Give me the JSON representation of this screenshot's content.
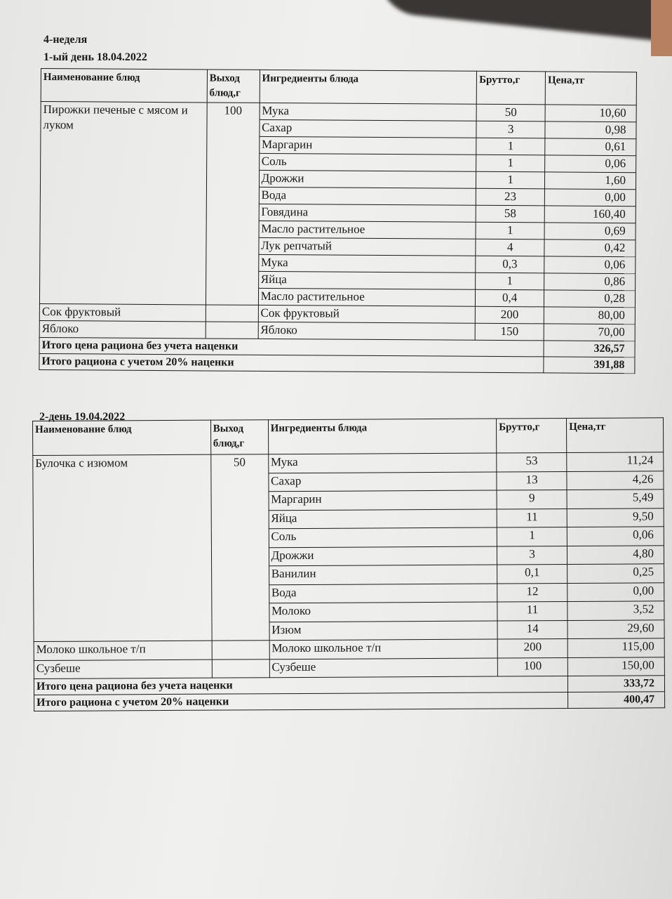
{
  "week": "4-неделя",
  "headers": [
    "Наименование блюд",
    "Выход блюд,г",
    "Ингредиенты блюда",
    "Брутто,г",
    "Цена,тг"
  ],
  "days": [
    {
      "title": "1-ый день 18.04.2022",
      "dishes": [
        {
          "name": "Пирожки печеные с мясом и луком",
          "yield": "100",
          "ingredients": [
            {
              "name": "Мука",
              "brutto": "50",
              "price": "10,60"
            },
            {
              "name": "Сахар",
              "brutto": "3",
              "price": "0,98"
            },
            {
              "name": "Маргарин",
              "brutto": "1",
              "price": "0,61"
            },
            {
              "name": "Соль",
              "brutto": "1",
              "price": "0,06"
            },
            {
              "name": "Дрожжи",
              "brutto": "1",
              "price": "1,60"
            },
            {
              "name": "Вода",
              "brutto": "23",
              "price": "0,00"
            },
            {
              "name": "Говядина",
              "brutto": "58",
              "price": "160,40"
            },
            {
              "name": "Масло растительное",
              "brutto": "1",
              "price": "0,69"
            },
            {
              "name": "Лук репчатый",
              "brutto": "4",
              "price": "0,42"
            },
            {
              "name": "Мука",
              "brutto": "0,3",
              "price": "0,06"
            },
            {
              "name": "Яйца",
              "brutto": "1",
              "price": "0,86"
            },
            {
              "name": "Масло растительное",
              "brutto": "0,4",
              "price": "0,28"
            }
          ]
        },
        {
          "name": "Сок фруктовый",
          "yield": "",
          "ingredients": [
            {
              "name": "Сок фруктовый",
              "brutto": "200",
              "price": "80,00"
            }
          ]
        },
        {
          "name": "Яблоко",
          "yield": "",
          "ingredients": [
            {
              "name": "Яблоко",
              "brutto": "150",
              "price": "70,00"
            }
          ]
        }
      ],
      "totals": [
        {
          "label": "Итого цена рациона без учета наценки",
          "value": "326,57"
        },
        {
          "label": "Итого рациона с учетом 20% наценки",
          "value": "391,88"
        }
      ]
    },
    {
      "title": "2-день 19.04.2022",
      "dishes": [
        {
          "name": "Булочка с изюмом",
          "yield": "50",
          "ingredients": [
            {
              "name": "Мука",
              "brutto": "53",
              "price": "11,24"
            },
            {
              "name": "Сахар",
              "brutto": "13",
              "price": "4,26"
            },
            {
              "name": "Маргарин",
              "brutto": "9",
              "price": "5,49"
            },
            {
              "name": "Яйца",
              "brutto": "11",
              "price": "9,50"
            },
            {
              "name": "Соль",
              "brutto": "1",
              "price": "0,06"
            },
            {
              "name": "Дрожжи",
              "brutto": "3",
              "price": "4,80"
            },
            {
              "name": "Ванилин",
              "brutto": "0,1",
              "price": "0,25"
            },
            {
              "name": "Вода",
              "brutto": "12",
              "price": "0,00"
            },
            {
              "name": "Молоко",
              "brutto": "11",
              "price": "3,52"
            },
            {
              "name": "Изюм",
              "brutto": "14",
              "price": "29,60"
            }
          ]
        },
        {
          "name": "Молоко школьное т/п",
          "yield": "",
          "ingredients": [
            {
              "name": "Молоко школьное т/п",
              "brutto": "200",
              "price": "115,00"
            }
          ]
        },
        {
          "name": "Сузбеше",
          "yield": "",
          "ingredients": [
            {
              "name": "Сузбеше",
              "brutto": "100",
              "price": "150,00"
            }
          ]
        }
      ],
      "totals": [
        {
          "label": "Итого цена рациона без учета наценки",
          "value": "333,72"
        },
        {
          "label": "Итого рациона с учетом 20% наценки",
          "value": "400,47"
        }
      ]
    }
  ]
}
